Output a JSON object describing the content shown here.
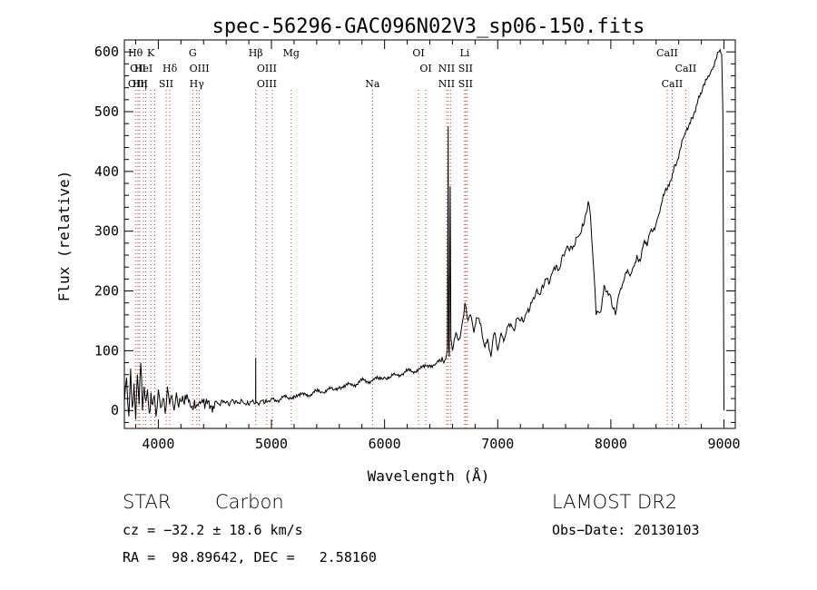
{
  "chart_data": {
    "type": "line",
    "title": "spec-56296-GAC096N02V3_sp06-150.fits",
    "xlabel": "Wavelength (Å)",
    "ylabel": "Flux (relative)",
    "xlim": [
      3700,
      9100
    ],
    "ylim": [
      -30,
      620
    ],
    "xticks": [
      4000,
      5000,
      6000,
      7000,
      8000,
      9000
    ],
    "yticks": [
      0,
      100,
      200,
      300,
      400,
      500,
      600
    ],
    "grid": false,
    "series": [
      {
        "points": [
          [
            3700,
            15
          ],
          [
            3720,
            55
          ],
          [
            3740,
            -10
          ],
          [
            3755,
            70
          ],
          [
            3770,
            5
          ],
          [
            3785,
            45
          ],
          [
            3800,
            -15
          ],
          [
            3815,
            60
          ],
          [
            3830,
            10
          ],
          [
            3845,
            80
          ],
          [
            3860,
            0
          ],
          [
            3875,
            40
          ],
          [
            3890,
            15
          ],
          [
            3905,
            35
          ],
          [
            3920,
            -5
          ],
          [
            3935,
            30
          ],
          [
            3950,
            10
          ],
          [
            3965,
            25
          ],
          [
            3980,
            -10
          ],
          [
            4000,
            35
          ],
          [
            4020,
            5
          ],
          [
            4040,
            20
          ],
          [
            4060,
            -5
          ],
          [
            4080,
            40
          ],
          [
            4100,
            10
          ],
          [
            4120,
            25
          ],
          [
            4140,
            0
          ],
          [
            4160,
            30
          ],
          [
            4180,
            5
          ],
          [
            4200,
            15
          ],
          [
            4230,
            10
          ],
          [
            4260,
            22
          ],
          [
            4290,
            5
          ],
          [
            4320,
            18
          ],
          [
            4350,
            8
          ],
          [
            4380,
            14
          ],
          [
            4410,
            3
          ],
          [
            4440,
            16
          ],
          [
            4470,
            8
          ],
          [
            4500,
            14
          ],
          [
            4540,
            10
          ],
          [
            4580,
            16
          ],
          [
            4620,
            10
          ],
          [
            4660,
            18
          ],
          [
            4700,
            12
          ],
          [
            4740,
            17
          ],
          [
            4780,
            10
          ],
          [
            4820,
            15
          ],
          [
            4850,
            11
          ],
          [
            4860,
            12
          ],
          [
            4861,
            88
          ],
          [
            4862,
            13
          ],
          [
            4880,
            12
          ],
          [
            4920,
            17
          ],
          [
            4960,
            14
          ],
          [
            5000,
            20
          ],
          [
            5050,
            17
          ],
          [
            5100,
            22
          ],
          [
            5150,
            20
          ],
          [
            5200,
            25
          ],
          [
            5250,
            24
          ],
          [
            5300,
            28
          ],
          [
            5350,
            27
          ],
          [
            5400,
            32
          ],
          [
            5450,
            31
          ],
          [
            5500,
            36
          ],
          [
            5550,
            34
          ],
          [
            5600,
            40
          ],
          [
            5650,
            39
          ],
          [
            5700,
            45
          ],
          [
            5750,
            44
          ],
          [
            5800,
            50
          ],
          [
            5850,
            48
          ],
          [
            5900,
            53
          ],
          [
            5950,
            52
          ],
          [
            6000,
            56
          ],
          [
            6050,
            55
          ],
          [
            6100,
            60
          ],
          [
            6150,
            61
          ],
          [
            6200,
            66
          ],
          [
            6250,
            65
          ],
          [
            6300,
            70
          ],
          [
            6350,
            72
          ],
          [
            6400,
            76
          ],
          [
            6450,
            78
          ],
          [
            6500,
            82
          ],
          [
            6540,
            86
          ],
          [
            6555,
            100
          ],
          [
            6562,
            475
          ],
          [
            6566,
            110
          ],
          [
            6572,
            90
          ],
          [
            6580,
            375
          ],
          [
            6586,
            120
          ],
          [
            6600,
            100
          ],
          [
            6630,
            130
          ],
          [
            6660,
            120
          ],
          [
            6690,
            150
          ],
          [
            6710,
            180
          ],
          [
            6730,
            155
          ],
          [
            6760,
            160
          ],
          [
            6790,
            130
          ],
          [
            6820,
            155
          ],
          [
            6850,
            145
          ],
          [
            6880,
            110
          ],
          [
            6910,
            120
          ],
          [
            6940,
            90
          ],
          [
            6970,
            130
          ],
          [
            7000,
            100
          ],
          [
            7030,
            130
          ],
          [
            7060,
            120
          ],
          [
            7100,
            145
          ],
          [
            7140,
            135
          ],
          [
            7180,
            155
          ],
          [
            7220,
            150
          ],
          [
            7260,
            165
          ],
          [
            7300,
            180
          ],
          [
            7340,
            200
          ],
          [
            7380,
            195
          ],
          [
            7420,
            220
          ],
          [
            7460,
            215
          ],
          [
            7500,
            240
          ],
          [
            7540,
            235
          ],
          [
            7580,
            260
          ],
          [
            7620,
            275
          ],
          [
            7660,
            270
          ],
          [
            7700,
            290
          ],
          [
            7740,
            300
          ],
          [
            7780,
            330
          ],
          [
            7800,
            350
          ],
          [
            7820,
            325
          ],
          [
            7840,
            260
          ],
          [
            7860,
            200
          ],
          [
            7870,
            160
          ],
          [
            7890,
            165
          ],
          [
            7910,
            165
          ],
          [
            7940,
            210
          ],
          [
            7970,
            200
          ],
          [
            8000,
            190
          ],
          [
            8020,
            170
          ],
          [
            8040,
            160
          ],
          [
            8060,
            185
          ],
          [
            8080,
            200
          ],
          [
            8110,
            215
          ],
          [
            8140,
            230
          ],
          [
            8170,
            225
          ],
          [
            8200,
            240
          ],
          [
            8230,
            260
          ],
          [
            8260,
            250
          ],
          [
            8290,
            280
          ],
          [
            8320,
            275
          ],
          [
            8350,
            300
          ],
          [
            8380,
            305
          ],
          [
            8410,
            320
          ],
          [
            8440,
            340
          ],
          [
            8470,
            360
          ],
          [
            8500,
            370
          ],
          [
            8530,
            385
          ],
          [
            8560,
            410
          ],
          [
            8590,
            420
          ],
          [
            8620,
            440
          ],
          [
            8650,
            460
          ],
          [
            8680,
            470
          ],
          [
            8710,
            490
          ],
          [
            8740,
            500
          ],
          [
            8770,
            520
          ],
          [
            8800,
            530
          ],
          [
            8830,
            545
          ],
          [
            8860,
            560
          ],
          [
            8890,
            570
          ],
          [
            8920,
            585
          ],
          [
            8950,
            600
          ],
          [
            8980,
            595
          ],
          [
            8990,
            500
          ],
          [
            9000,
            0
          ]
        ]
      }
    ],
    "lines": [
      {
        "w": 3798,
        "labels": [
          "Hθ"
        ],
        "row": [
          0
        ]
      },
      {
        "w": 3820,
        "labels": [
          "OII",
          "OIII"
        ],
        "row": [
          1,
          2
        ]
      },
      {
        "w": 3835,
        "labels": [
          "Hη"
        ],
        "row": [
          2
        ]
      },
      {
        "w": 3869,
        "labels": [
          "HeI"
        ],
        "row": [
          1
        ]
      },
      {
        "w": 3889,
        "labels": [],
        "row": []
      },
      {
        "w": 3934,
        "labels": [
          "K"
        ],
        "row": [
          0
        ]
      },
      {
        "w": 3969,
        "labels": [],
        "row": []
      },
      {
        "w": 4069,
        "labels": [
          "SII"
        ],
        "row": [
          2
        ]
      },
      {
        "w": 4102,
        "labels": [
          "Hδ"
        ],
        "row": [
          1
        ]
      },
      {
        "w": 4304,
        "labels": [
          "G"
        ],
        "row": [
          0
        ]
      },
      {
        "w": 4340,
        "labels": [
          "Hγ"
        ],
        "row": [
          2
        ]
      },
      {
        "w": 4363,
        "labels": [
          "OIII"
        ],
        "row": [
          1
        ]
      },
      {
        "w": 4861,
        "labels": [
          "Hβ"
        ],
        "row": [
          0
        ]
      },
      {
        "w": 4959,
        "labels": [
          "OIII",
          "OIII"
        ],
        "row": [
          1,
          2
        ]
      },
      {
        "w": 5007,
        "labels": [],
        "row": []
      },
      {
        "w": 5175,
        "labels": [
          "Mg"
        ],
        "row": [
          0
        ]
      },
      {
        "w": 5893,
        "labels": [
          "Na"
        ],
        "row": [
          2
        ]
      },
      {
        "w": 6300,
        "labels": [
          "OI"
        ],
        "row": [
          0
        ]
      },
      {
        "w": 6364,
        "labels": [
          "OI"
        ],
        "row": [
          1
        ]
      },
      {
        "w": 6548,
        "labels": [
          "NII",
          "NII"
        ],
        "row": [
          1,
          2
        ]
      },
      {
        "w": 6563,
        "labels": [],
        "row": []
      },
      {
        "w": 6583,
        "labels": [],
        "row": []
      },
      {
        "w": 6708,
        "labels": [
          "Li"
        ],
        "row": [
          0
        ]
      },
      {
        "w": 6716,
        "labels": [
          "SII",
          "SII"
        ],
        "row": [
          1,
          2
        ]
      },
      {
        "w": 6731,
        "labels": [],
        "row": []
      },
      {
        "w": 8498,
        "labels": [
          "CaII"
        ],
        "row": [
          0
        ]
      },
      {
        "w": 8542,
        "labels": [
          "CaII"
        ],
        "row": [
          2
        ]
      },
      {
        "w": 8662,
        "labels": [
          "CaII"
        ],
        "row": [
          1
        ]
      }
    ]
  },
  "info": {
    "classification": "STAR",
    "subclass": "Carbon",
    "survey": "LAMOST DR2",
    "cz": "cz = −32.2 ± 18.6 km/s",
    "obsdate": "Obs−Date: 20130103",
    "coords": "RA =  98.89642, DEC =   2.58160"
  }
}
